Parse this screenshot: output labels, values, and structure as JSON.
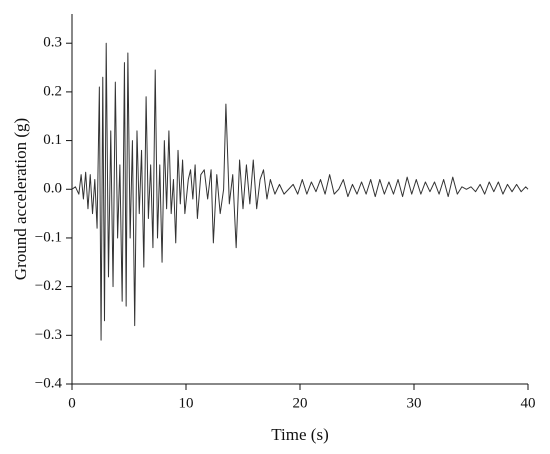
{
  "chart_data": {
    "type": "line",
    "xlabel": "Time (s)",
    "ylabel": "Ground acceleration (g)",
    "color": "#333333",
    "xlim": [
      0,
      40
    ],
    "xticks": [
      0,
      10,
      20,
      30,
      40
    ],
    "ylim": [
      -0.4,
      0.36
    ],
    "yticks": [
      {
        "value": -0.4,
        "label": "−0.4"
      },
      {
        "value": -0.3,
        "label": "−0.3"
      },
      {
        "value": -0.2,
        "label": "−0.2"
      },
      {
        "value": -0.1,
        "label": "−0.1"
      },
      {
        "value": 0,
        "label": "0.0"
      },
      0.1,
      0.2,
      0.3
    ],
    "x": [
      0,
      0.3,
      0.6,
      0.8,
      1.0,
      1.2,
      1.4,
      1.6,
      1.8,
      2.0,
      2.2,
      2.4,
      2.55,
      2.7,
      2.85,
      3.0,
      3.2,
      3.4,
      3.6,
      3.8,
      4.0,
      4.2,
      4.4,
      4.6,
      4.75,
      4.9,
      5.1,
      5.3,
      5.5,
      5.7,
      5.9,
      6.1,
      6.3,
      6.5,
      6.7,
      6.9,
      7.1,
      7.3,
      7.5,
      7.7,
      7.9,
      8.1,
      8.3,
      8.5,
      8.7,
      8.9,
      9.1,
      9.3,
      9.5,
      9.7,
      9.9,
      10.2,
      10.4,
      10.6,
      10.8,
      11.0,
      11.3,
      11.6,
      11.9,
      12.2,
      12.4,
      12.7,
      13.0,
      13.3,
      13.5,
      13.8,
      14.1,
      14.4,
      14.7,
      15.0,
      15.3,
      15.6,
      15.9,
      16.2,
      16.5,
      16.8,
      17.1,
      17.4,
      17.8,
      18.2,
      18.6,
      19.0,
      19.4,
      19.8,
      20.2,
      20.6,
      21.0,
      21.4,
      21.8,
      22.2,
      22.6,
      23.0,
      23.4,
      23.8,
      24.2,
      24.6,
      25.0,
      25.4,
      25.8,
      26.2,
      26.6,
      27.0,
      27.4,
      27.8,
      28.2,
      28.6,
      29.0,
      29.4,
      29.8,
      30.2,
      30.6,
      31.0,
      31.4,
      31.8,
      32.2,
      32.6,
      33.0,
      33.4,
      33.8,
      34.2,
      34.6,
      35.0,
      35.4,
      35.8,
      36.2,
      36.6,
      37.0,
      37.4,
      37.8,
      38.2,
      38.6,
      39.0,
      39.4,
      39.8,
      40.0
    ],
    "values": [
      0,
      0.005,
      -0.01,
      0.03,
      -0.02,
      0.035,
      -0.04,
      0.03,
      -0.05,
      0.02,
      -0.08,
      0.21,
      -0.31,
      0.23,
      -0.27,
      0.3,
      -0.18,
      0.12,
      -0.2,
      0.22,
      -0.1,
      0.05,
      -0.23,
      0.26,
      -0.24,
      0.28,
      -0.1,
      0.1,
      -0.28,
      0.12,
      -0.05,
      0.08,
      -0.16,
      0.19,
      -0.06,
      0.05,
      -0.12,
      0.245,
      -0.1,
      0.05,
      -0.15,
      0.1,
      -0.04,
      0.12,
      -0.05,
      0.02,
      -0.11,
      0.08,
      -0.03,
      0.06,
      -0.05,
      0.02,
      0.04,
      -0.02,
      0.05,
      -0.06,
      0.03,
      0.04,
      -0.02,
      0.04,
      -0.11,
      0.03,
      -0.05,
      0.0,
      0.175,
      -0.03,
      0.03,
      -0.12,
      0.06,
      -0.04,
      0.05,
      -0.03,
      0.06,
      -0.04,
      0.02,
      0.04,
      -0.02,
      0.02,
      -0.01,
      0.01,
      -0.01,
      0.0,
      0.01,
      -0.01,
      0.02,
      -0.01,
      0.015,
      -0.005,
      0.02,
      -0.01,
      0.03,
      -0.01,
      0.0,
      0.02,
      -0.015,
      0.01,
      -0.01,
      0.015,
      -0.01,
      0.02,
      -0.015,
      0.02,
      -0.01,
      0.015,
      -0.01,
      0.02,
      -0.015,
      0.025,
      -0.01,
      0.02,
      -0.01,
      0.015,
      -0.005,
      0.015,
      -0.01,
      0.02,
      -0.015,
      0.025,
      -0.01,
      0.005,
      0.0,
      0.005,
      -0.005,
      0.01,
      -0.01,
      0.015,
      -0.005,
      0.015,
      -0.01,
      0.01,
      -0.005,
      0.01,
      -0.005,
      0.005,
      0.0
    ]
  }
}
